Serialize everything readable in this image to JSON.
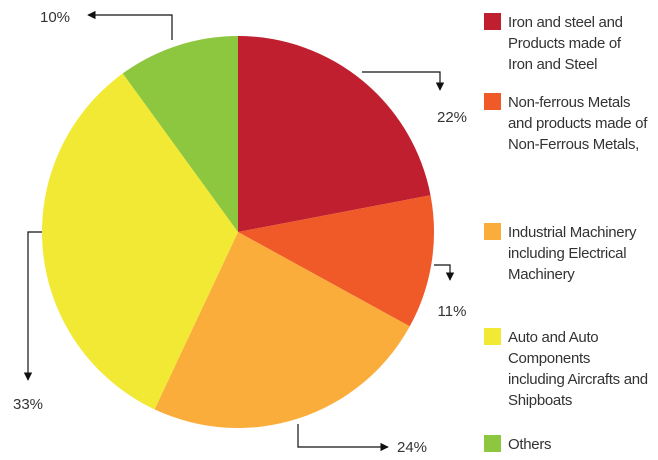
{
  "chart_data": {
    "type": "pie",
    "series": [
      {
        "name": "Iron and steel and Products made of Iron and Steel",
        "color": "#c01f2f"
      },
      {
        "name": "Non-ferrous Metals and products made of Non-Ferrous Metals,",
        "color": "#f05a28"
      },
      {
        "name": "Industrial Machinery including Electrical Machinery",
        "color": "#fbad3c"
      },
      {
        "name": "Auto and Auto Components including Aircrafts and Shipboats",
        "color": "#f2e935"
      },
      {
        "name": "Others",
        "color": "#8dc63f"
      }
    ],
    "values": [
      22,
      11,
      24,
      33,
      10
    ],
    "value_labels": [
      "22%",
      "11%",
      "24%",
      "33%",
      "10%"
    ]
  }
}
